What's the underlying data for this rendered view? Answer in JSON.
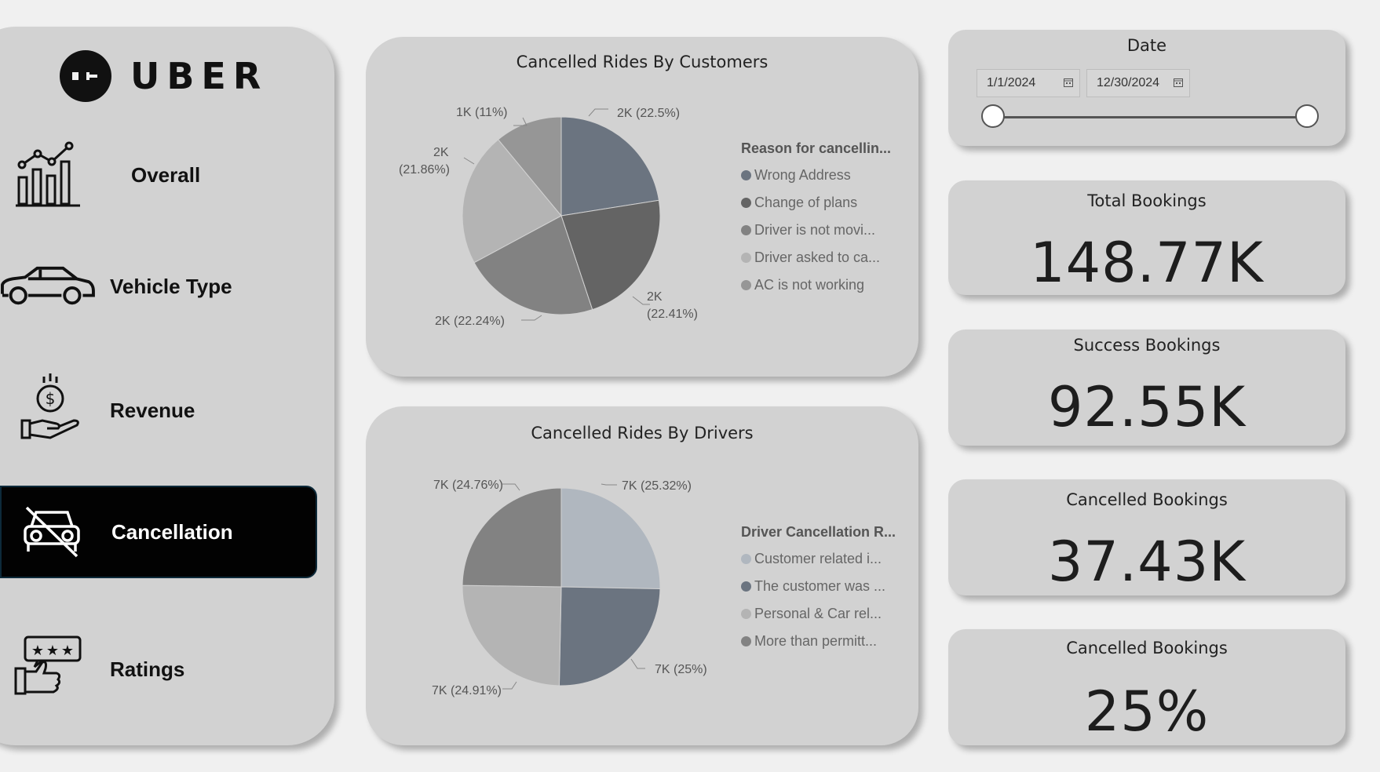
{
  "logo": {
    "text": "UBER"
  },
  "nav": [
    {
      "label": "Overall",
      "icon": "bar-chart-trend-icon"
    },
    {
      "label": "Vehicle Type",
      "icon": "car-icon"
    },
    {
      "label": "Revenue",
      "icon": "money-hand-icon"
    },
    {
      "label": "Cancellation",
      "icon": "car-cancel-icon",
      "active": true
    },
    {
      "label": "Ratings",
      "icon": "rating-thumb-icon"
    }
  ],
  "customers_chart": {
    "title": "Cancelled Rides By Customers",
    "legend_title": "Reason for cancellin...",
    "legend": [
      {
        "label": "Wrong Address",
        "color": "#6b7480"
      },
      {
        "label": "Change of plans",
        "color": "#646464"
      },
      {
        "label": "Driver is not movi...",
        "color": "#828282"
      },
      {
        "label": "Driver asked to ca...",
        "color": "#b4b4b4"
      },
      {
        "label": "AC is not working",
        "color": "#969696"
      }
    ],
    "labels": {
      "wrong_address": "2K (22.5%)",
      "change_of_plans_1": "2K",
      "change_of_plans_2": "(22.41%)",
      "driver_not_moving": "2K (22.24%)",
      "driver_asked_1": "2K",
      "driver_asked_2": "(21.86%)",
      "ac_not_working": "1K (11%)"
    }
  },
  "drivers_chart": {
    "title": "Cancelled Rides By Drivers",
    "legend_title": "Driver Cancellation R...",
    "legend": [
      {
        "label": "Customer related i...",
        "color": "#b0b7bf"
      },
      {
        "label": "The customer was ...",
        "color": "#6b7480"
      },
      {
        "label": "Personal & Car rel...",
        "color": "#b4b4b4"
      },
      {
        "label": "More than permitt...",
        "color": "#828282"
      }
    ],
    "labels": {
      "customer_related": "7K (25.32%)",
      "customer_was": "7K (25%)",
      "personal_car": "7K (24.91%)",
      "more_than_permitted": "7K (24.76%)"
    }
  },
  "chart_data": [
    {
      "type": "pie",
      "title": "Cancelled Rides By Customers",
      "legend_title": "Reason for cancellin...",
      "categories": [
        "Wrong Address",
        "Change of plans",
        "Driver is not movi...",
        "Driver asked to ca...",
        "AC is not working"
      ],
      "values": [
        22.5,
        22.41,
        22.24,
        21.86,
        11
      ],
      "display_values": [
        "2K",
        "2K",
        "2K",
        "2K",
        "1K"
      ],
      "colors": [
        "#6b7480",
        "#646464",
        "#828282",
        "#b4b4b4",
        "#969696"
      ],
      "legend_position": "right"
    },
    {
      "type": "pie",
      "title": "Cancelled Rides By Drivers",
      "legend_title": "Driver Cancellation R...",
      "categories": [
        "Customer related i...",
        "The customer was ...",
        "Personal & Car rel...",
        "More than permitt..."
      ],
      "values": [
        25.32,
        25,
        24.91,
        24.76
      ],
      "display_values": [
        "7K",
        "7K",
        "7K",
        "7K"
      ],
      "colors": [
        "#b0b7bf",
        "#6b7480",
        "#b4b4b4",
        "#828282"
      ],
      "legend_position": "right"
    }
  ],
  "date_filter": {
    "title": "Date",
    "start": "1/1/2024",
    "end": "12/30/2024",
    "range_start": 0,
    "range_end": 1
  },
  "kpis": [
    {
      "title": "Total Bookings",
      "value": "148.77K"
    },
    {
      "title": "Success Bookings",
      "value": "92.55K"
    },
    {
      "title": "Cancelled Bookings",
      "value": "37.43K"
    },
    {
      "title": "Cancelled Bookings",
      "value": "25%"
    }
  ]
}
